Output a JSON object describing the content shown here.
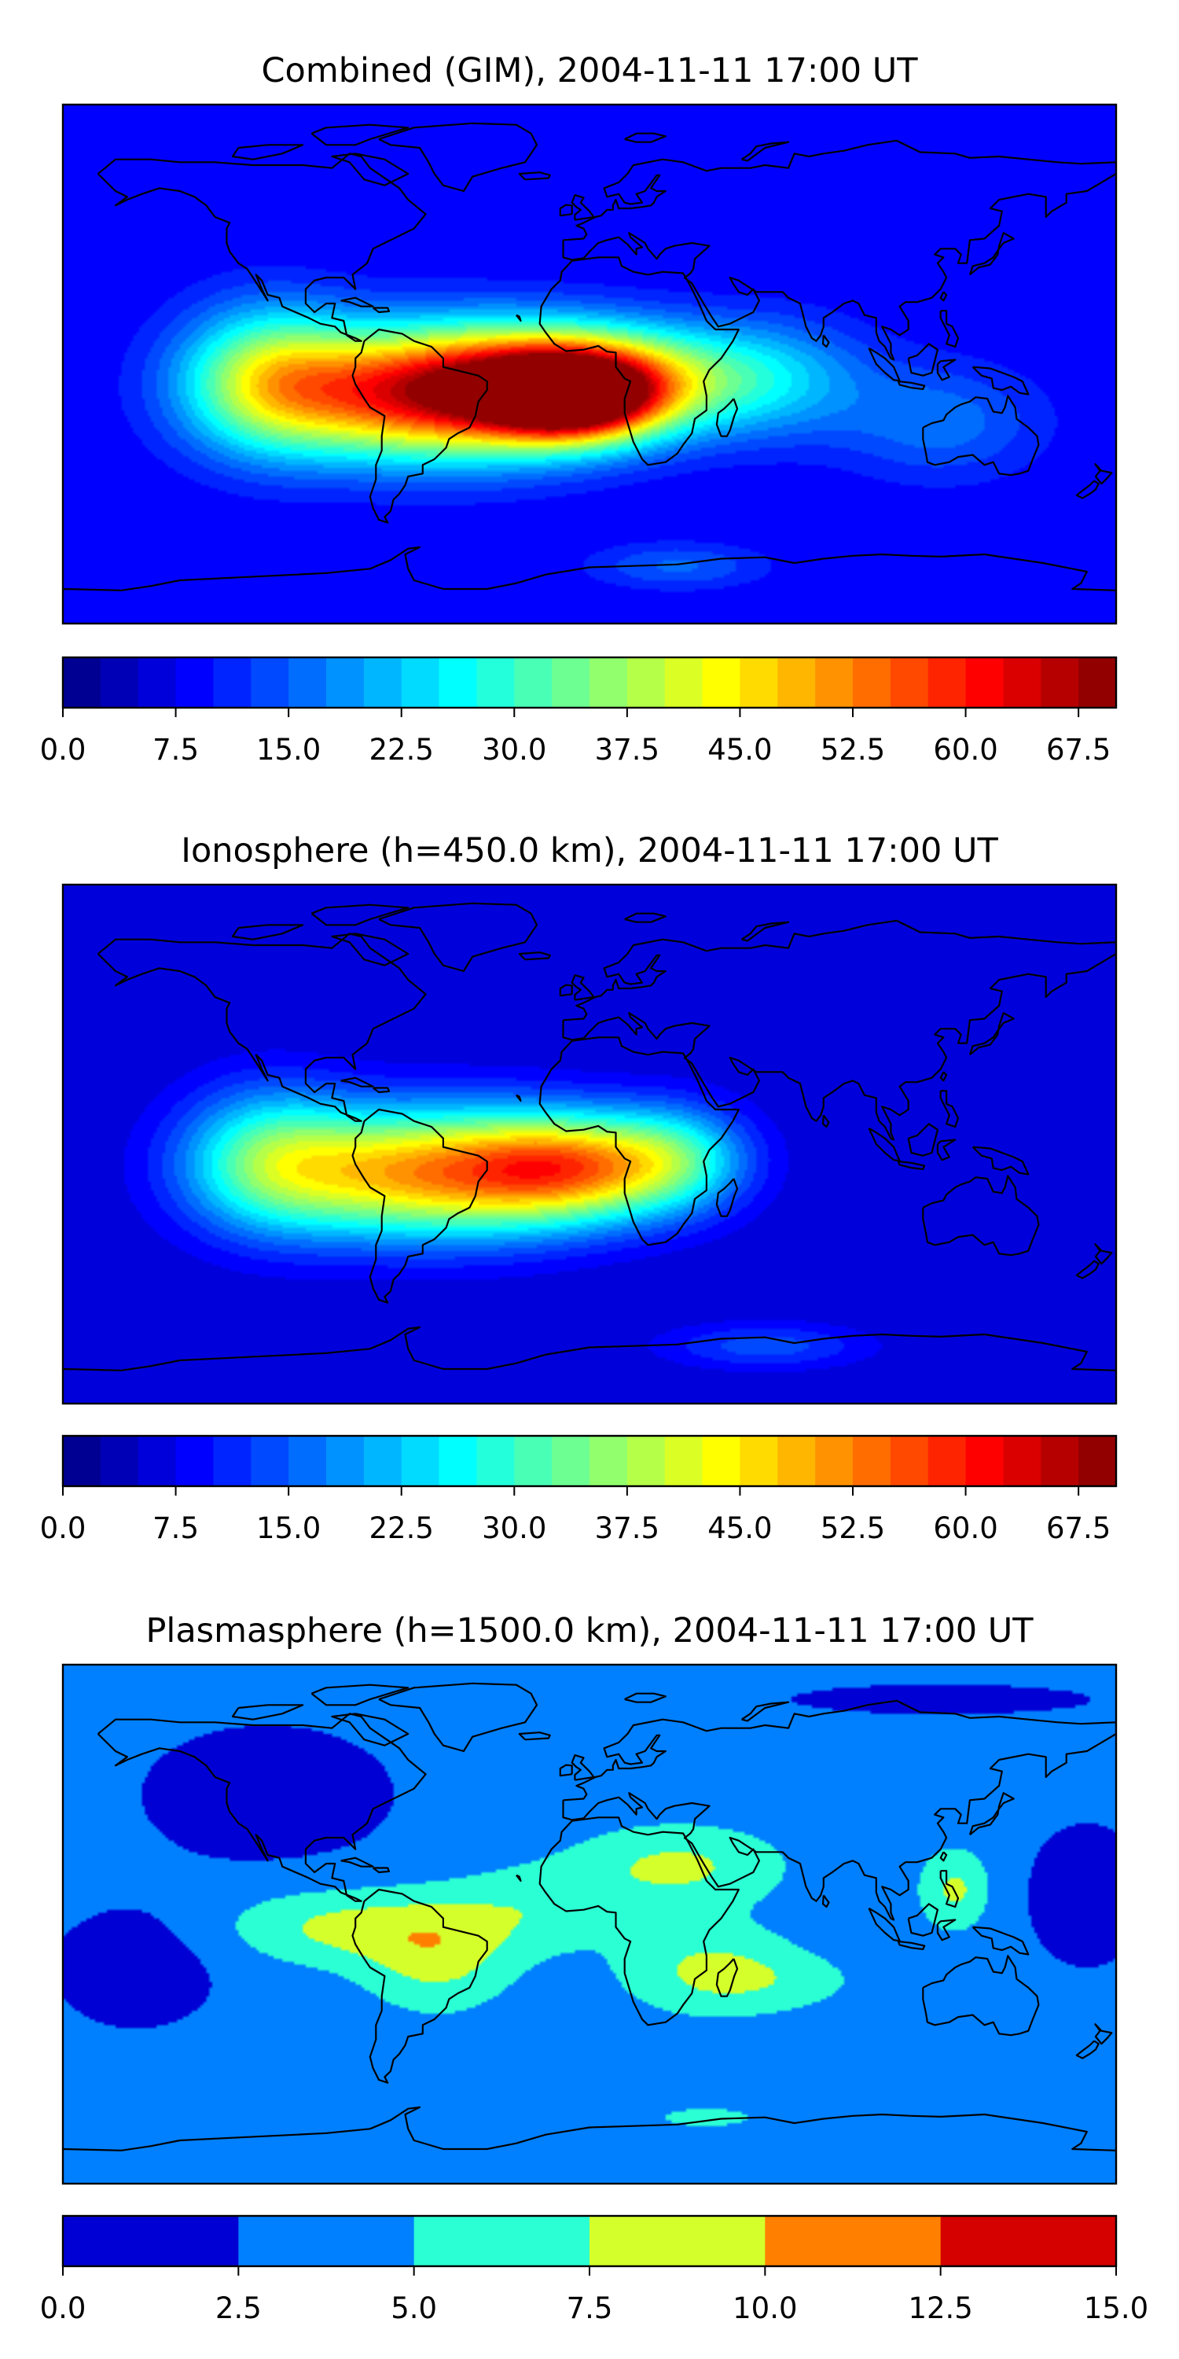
{
  "chart_data": [
    {
      "type": "heatmap",
      "title": "Combined (GIM), 2004-11-11 17:00 UT",
      "colorbar": {
        "vmin": 0.0,
        "vmax": 70.0,
        "levels": 28,
        "tick_values": [
          0.0,
          7.5,
          15.0,
          22.5,
          30.0,
          37.5,
          45.0,
          52.5,
          60.0,
          67.5
        ],
        "tick_labels": [
          "0.0",
          "7.5",
          "15.0",
          "22.5",
          "30.0",
          "37.5",
          "45.0",
          "52.5",
          "60.0",
          "67.5"
        ]
      },
      "background_level": 7.5,
      "features": [
        {
          "lon": -52,
          "lat": -10,
          "value": 55,
          "sx": 55,
          "sy": 22
        },
        {
          "lon": -5,
          "lat": -12,
          "value": 44,
          "sx": 28,
          "sy": 14
        },
        {
          "lon": 0,
          "lat": -5,
          "value": 36,
          "sx": 45,
          "sy": 18
        },
        {
          "lon": -110,
          "lat": -5,
          "value": 25,
          "sx": 30,
          "sy": 25
        },
        {
          "lon": 60,
          "lat": -5,
          "value": 14,
          "sx": 35,
          "sy": 20
        },
        {
          "lon": 120,
          "lat": -20,
          "value": 9,
          "sx": 35,
          "sy": 20
        },
        {
          "lon": 30,
          "lat": -70,
          "value": 8,
          "sx": 30,
          "sy": 8
        }
      ]
    },
    {
      "type": "heatmap",
      "title": "Ionosphere  (h=450.0 km), 2004-11-11 17:00 UT",
      "colorbar": {
        "vmin": 0.0,
        "vmax": 70.0,
        "levels": 28,
        "tick_values": [
          0.0,
          7.5,
          15.0,
          22.5,
          30.0,
          37.5,
          45.0,
          52.5,
          60.0,
          67.5
        ],
        "tick_labels": [
          "0.0",
          "7.5",
          "15.0",
          "22.5",
          "30.0",
          "37.5",
          "45.0",
          "52.5",
          "60.0",
          "67.5"
        ]
      },
      "background_level": 5,
      "features": [
        {
          "lon": -55,
          "lat": -10,
          "value": 44,
          "sx": 55,
          "sy": 22
        },
        {
          "lon": -5,
          "lat": -8,
          "value": 32,
          "sx": 35,
          "sy": 18
        },
        {
          "lon": -110,
          "lat": -5,
          "value": 20,
          "sx": 30,
          "sy": 25
        },
        {
          "lon": 30,
          "lat": -5,
          "value": 18,
          "sx": 25,
          "sy": 18
        },
        {
          "lon": 60,
          "lat": -70,
          "value": 9,
          "sx": 35,
          "sy": 8
        }
      ]
    },
    {
      "type": "heatmap",
      "title": "Plasmasphere (h=1500.0 km), 2004-11-11 17:00 UT",
      "colorbar": {
        "vmin": 0.0,
        "vmax": 15.0,
        "levels": 6,
        "tick_values": [
          0.0,
          2.5,
          5.0,
          7.5,
          10.0,
          12.5,
          15.0
        ],
        "tick_labels": [
          "0.0",
          "2.5",
          "5.0",
          "7.5",
          "10.0",
          "12.5",
          "15.0"
        ]
      },
      "background_level": 3.5,
      "features": [
        {
          "lon": -110,
          "lat": 45,
          "value": -2.5,
          "sx": 45,
          "sy": 25
        },
        {
          "lon": -155,
          "lat": -15,
          "value": -2.5,
          "sx": 30,
          "sy": 22
        },
        {
          "lon": 170,
          "lat": 10,
          "value": -2.0,
          "sx": 25,
          "sy": 30
        },
        {
          "lon": 120,
          "lat": 78,
          "value": -1.5,
          "sx": 80,
          "sy": 8
        },
        {
          "lon": -85,
          "lat": -1,
          "value": 4.5,
          "sx": 40,
          "sy": 13
        },
        {
          "lon": -52,
          "lat": -12,
          "value": 4.5,
          "sx": 25,
          "sy": 18
        },
        {
          "lon": -20,
          "lat": 5,
          "value": 3.0,
          "sx": 30,
          "sy": 15
        },
        {
          "lon": 30,
          "lat": 20,
          "value": 4.5,
          "sx": 35,
          "sy": 14
        },
        {
          "lon": 40,
          "lat": -15,
          "value": 4.0,
          "sx": 30,
          "sy": 16
        },
        {
          "lon": 125,
          "lat": 12,
          "value": 4.5,
          "sx": 12,
          "sy": 14
        },
        {
          "lon": 65,
          "lat": -20,
          "value": 2.0,
          "sx": 30,
          "sy": 10
        },
        {
          "lon": 40,
          "lat": -67,
          "value": 2.5,
          "sx": 20,
          "sy": 4
        }
      ]
    }
  ]
}
